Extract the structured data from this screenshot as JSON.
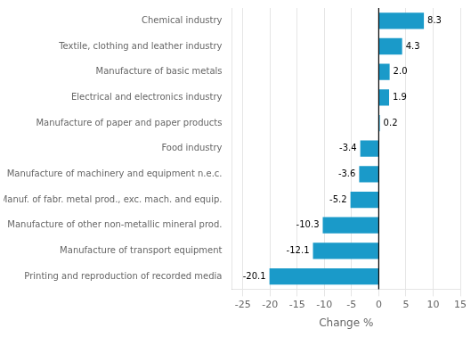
{
  "chart_data": {
    "type": "bar",
    "orientation": "horizontal",
    "categories": [
      "Printing and reproduction of recorded media",
      "Manufacture of transport equipment",
      "Manufacture of other non-metallic mineral prod.",
      "Manuf. of fabr. metal prod., exc. mach. and equip.",
      "Manufacture of machinery and equipment n.e.c.",
      "Food industry",
      "Manufacture of paper and paper products",
      "Electrical and electronics industry",
      "Manufacture of basic metals",
      "Textile, clothing and leather industry",
      "Chemical industry"
    ],
    "values": [
      -20.1,
      -12.1,
      -10.3,
      -5.2,
      -3.6,
      -3.4,
      0.2,
      1.9,
      2.0,
      4.3,
      8.3
    ],
    "value_labels": [
      "-20.1",
      "-12.1",
      "-10.3",
      "-5.2",
      "-3.6",
      "-3.4",
      "0.2",
      "1.9",
      "2.0",
      "4.3",
      "8.3"
    ],
    "data_labels": true,
    "color": "#1a9ac9",
    "xlabel": "Change %",
    "xlim": [
      -27,
      15
    ],
    "xticks": [
      -25,
      -20,
      -15,
      -10,
      -5,
      0,
      5,
      10,
      15
    ],
    "grid": true
  }
}
